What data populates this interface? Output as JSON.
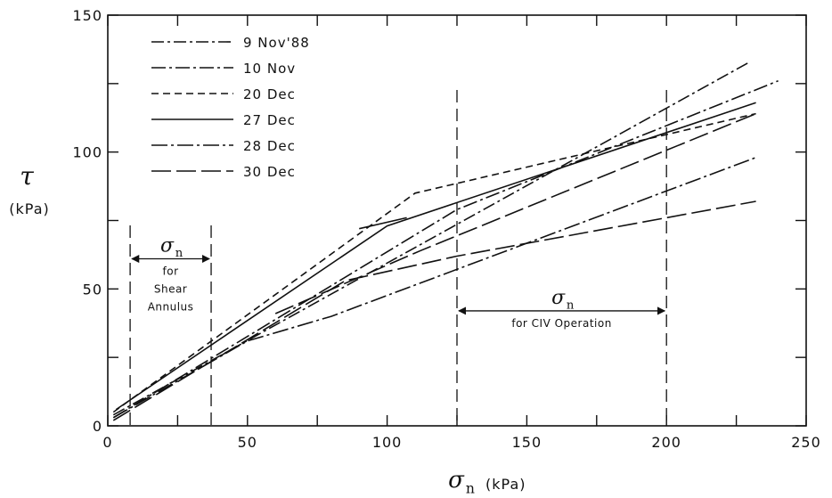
{
  "chart_data": {
    "type": "line",
    "xlabel_symbol": "σ",
    "xlabel_sub": "n",
    "xlabel_unit": "(kPa)",
    "ylabel_symbol": "τ",
    "ylabel_unit": "(kPa)",
    "xlim": [
      0,
      250
    ],
    "ylim": [
      0,
      150
    ],
    "x_ticks": [
      0,
      50,
      100,
      150,
      200,
      250
    ],
    "y_ticks": [
      0,
      50,
      100,
      150
    ],
    "series": [
      {
        "name": "9 Nov'88",
        "dash": "14,4,3,4",
        "points": [
          [
            2,
            4
          ],
          [
            230,
            133
          ]
        ]
      },
      {
        "name": "10 Nov",
        "dash": "16,4,3,4",
        "points": [
          [
            2,
            3
          ],
          [
            125,
            79
          ],
          [
            240,
            126
          ]
        ]
      },
      {
        "name": "20 Dec",
        "dash": "8,5",
        "points": [
          [
            2,
            5
          ],
          [
            110,
            85
          ],
          [
            232,
            114
          ]
        ]
      },
      {
        "name": "27 Dec",
        "dash": "",
        "points": [
          [
            3,
            6
          ],
          [
            100,
            73
          ],
          [
            232,
            118
          ]
        ]
      },
      {
        "name": "28 Dec",
        "dash": "18,4,3,4",
        "points": [
          [
            2,
            3
          ],
          [
            50,
            31
          ],
          [
            80,
            40
          ],
          [
            232,
            98
          ]
        ]
      },
      {
        "name": "30 Dec",
        "dash": "22,6",
        "points": [
          [
            2,
            2
          ],
          [
            85,
            53
          ],
          [
            125,
            62
          ],
          [
            232,
            82
          ]
        ]
      }
    ],
    "extra_segments": [
      {
        "dash": "22,6",
        "points": [
          [
            60,
            41
          ],
          [
            112,
            64
          ],
          [
            232,
            114
          ]
        ]
      },
      {
        "dash": "",
        "points": [
          [
            90,
            72
          ],
          [
            107,
            76
          ]
        ]
      }
    ],
    "vertical_lines": [
      8,
      37,
      125,
      200
    ],
    "annotations": [
      {
        "label_symbol": "σ",
        "label_sub": "n",
        "lines": [
          "for",
          "Shear",
          "Annulus"
        ],
        "x_range": [
          8,
          37
        ],
        "y": 61
      },
      {
        "label_symbol": "σ",
        "label_sub": "n",
        "lines": [
          "for CIV Operation"
        ],
        "x_range": [
          125,
          200
        ],
        "y": 42
      }
    ]
  }
}
